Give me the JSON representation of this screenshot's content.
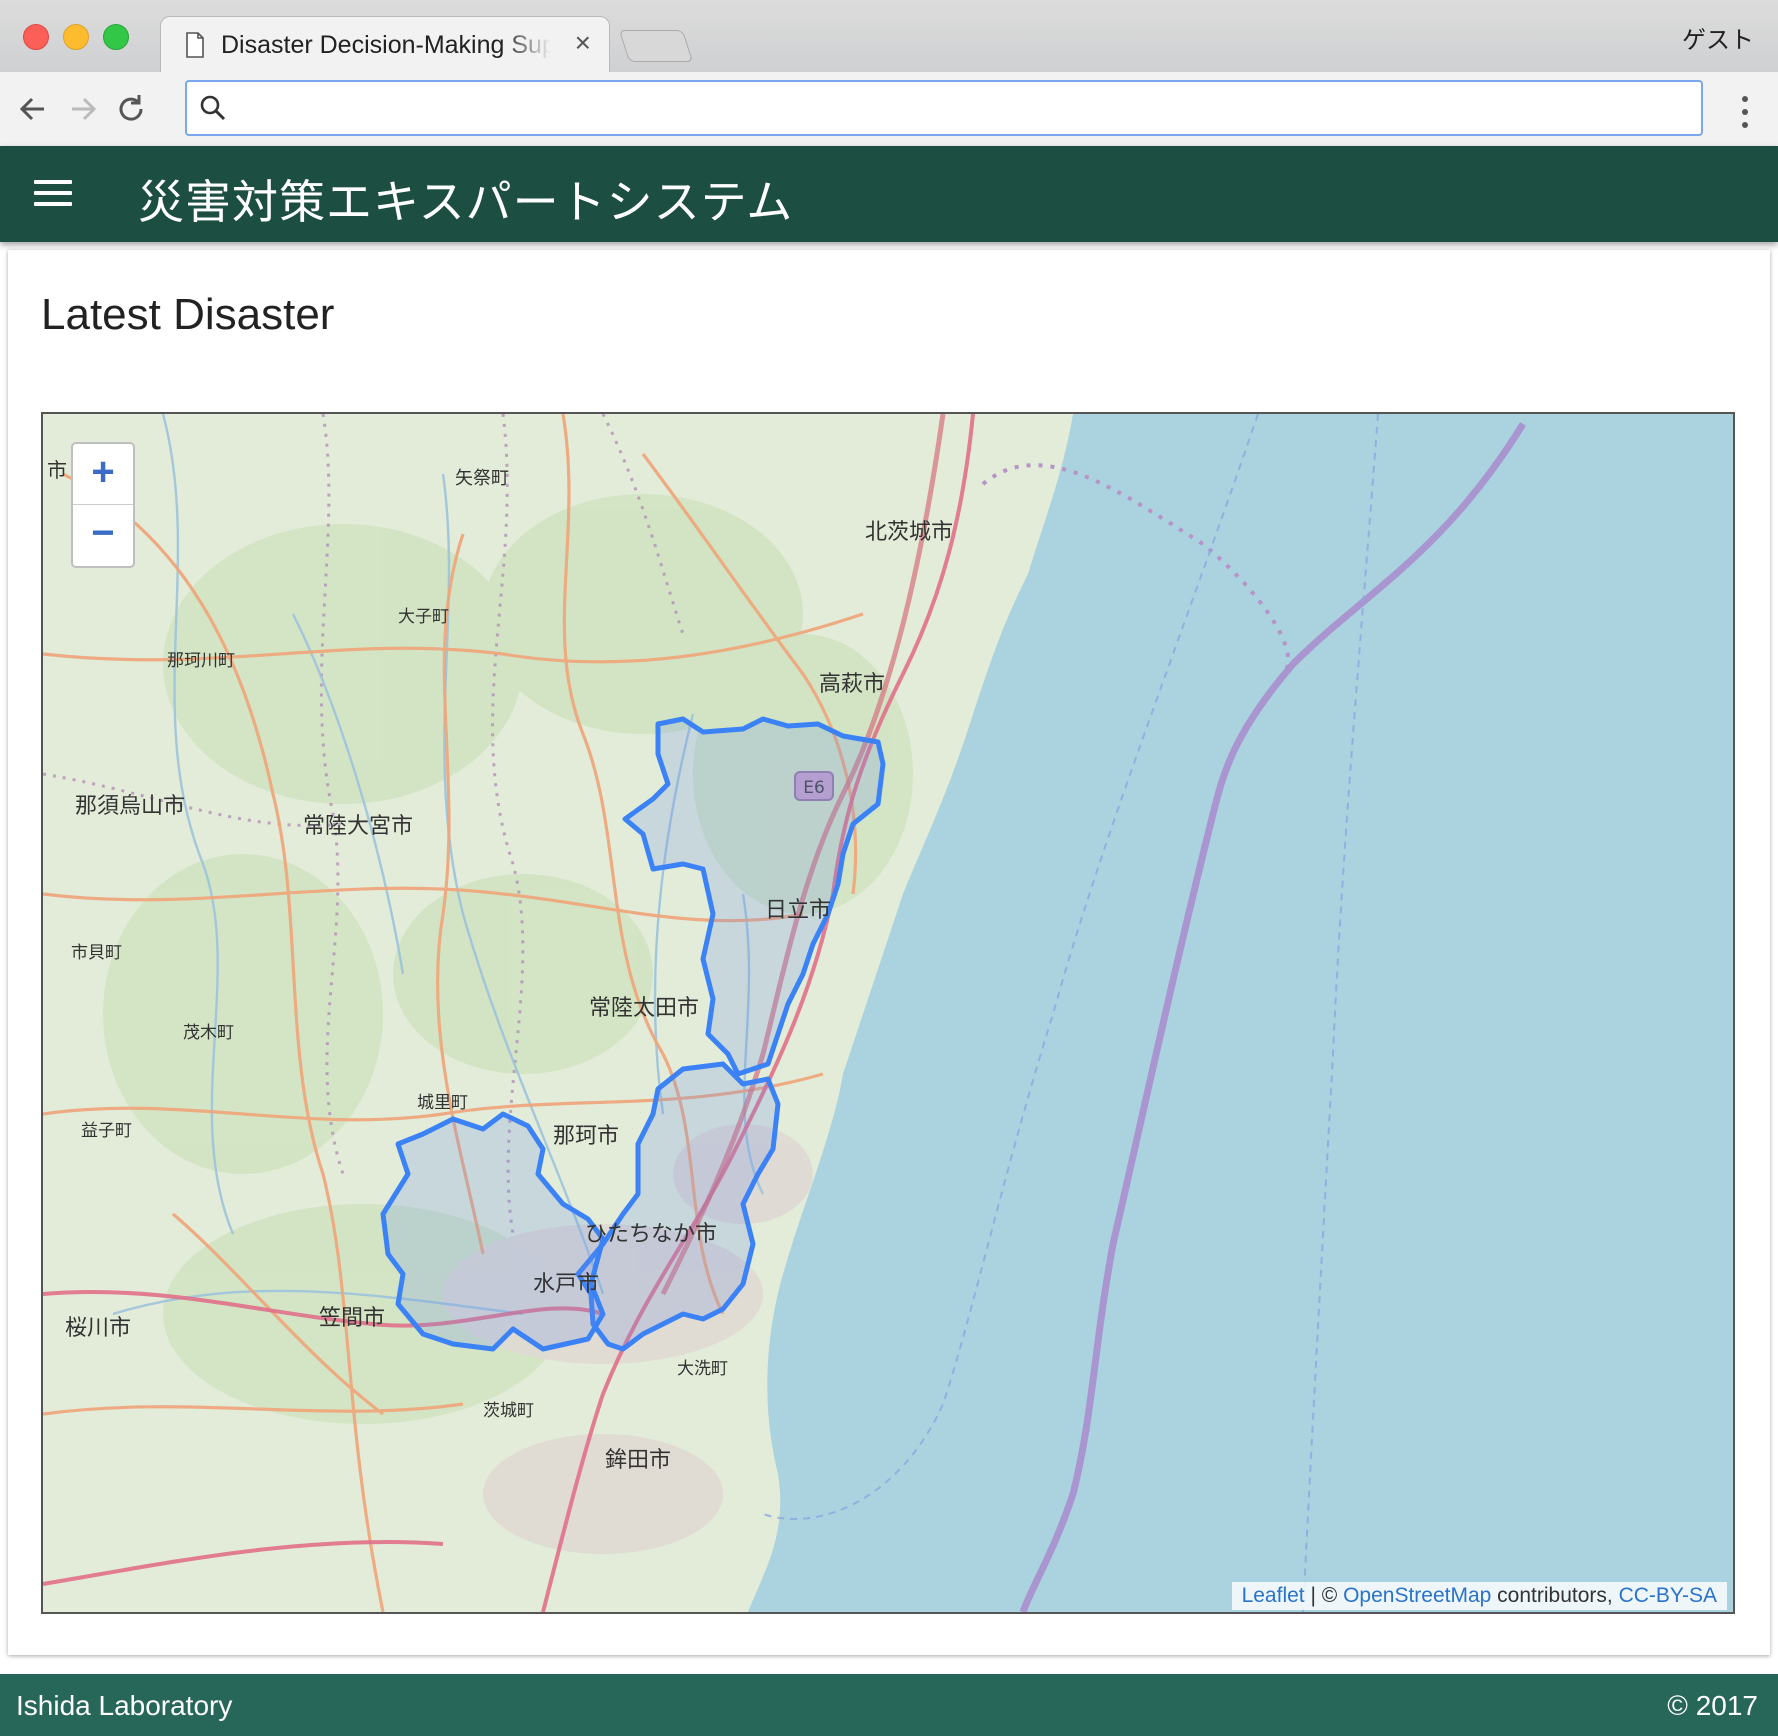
{
  "browser": {
    "tab_title": "Disaster Decision-Making Support",
    "close_glyph": "×",
    "profile_label": "ゲスト",
    "address_value": "",
    "address_placeholder": ""
  },
  "app": {
    "title": "災害対策エキスパートシステム"
  },
  "card": {
    "title": "Latest Disaster"
  },
  "map": {
    "zoom_in_label": "+",
    "zoom_out_label": "−",
    "road_shield": "E6",
    "places": {
      "yamatsuri": "矢祭町",
      "kitaibaraki": "北茨城市",
      "daigo": "大子町",
      "nakagawa": "那珂川町",
      "takahagi": "高萩市",
      "nasukarasuyama": "那須烏山市",
      "hitachiomiya": "常陸大宮市",
      "hitachi": "日立市",
      "ichikai": "市貝町",
      "hitachiota": "常陸太田市",
      "motegi": "茂木町",
      "shirosato": "城里町",
      "mashiko": "益子町",
      "naka": "那珂市",
      "hitachinaka": "ひたちなか市",
      "mito": "水戸市",
      "kasama": "笠間市",
      "sakuragawa": "桜川市",
      "oarai": "大洗町",
      "ibaraki": "茨城町",
      "hokota": "鉾田市",
      "edge_ichi": "市"
    },
    "attribution": {
      "leaflet": "Leaflet",
      "separator": " | © ",
      "osm": "OpenStreetMap",
      "contributors": " contributors, ",
      "license": "CC-BY-SA"
    },
    "colors": {
      "land": "#e3ecd8",
      "sea": "#aad3df",
      "highlight_stroke": "#3b82f6",
      "highlight_fill": "#6a8fe6"
    }
  },
  "footer": {
    "left": "Ishida Laboratory",
    "right": "© 2017"
  }
}
